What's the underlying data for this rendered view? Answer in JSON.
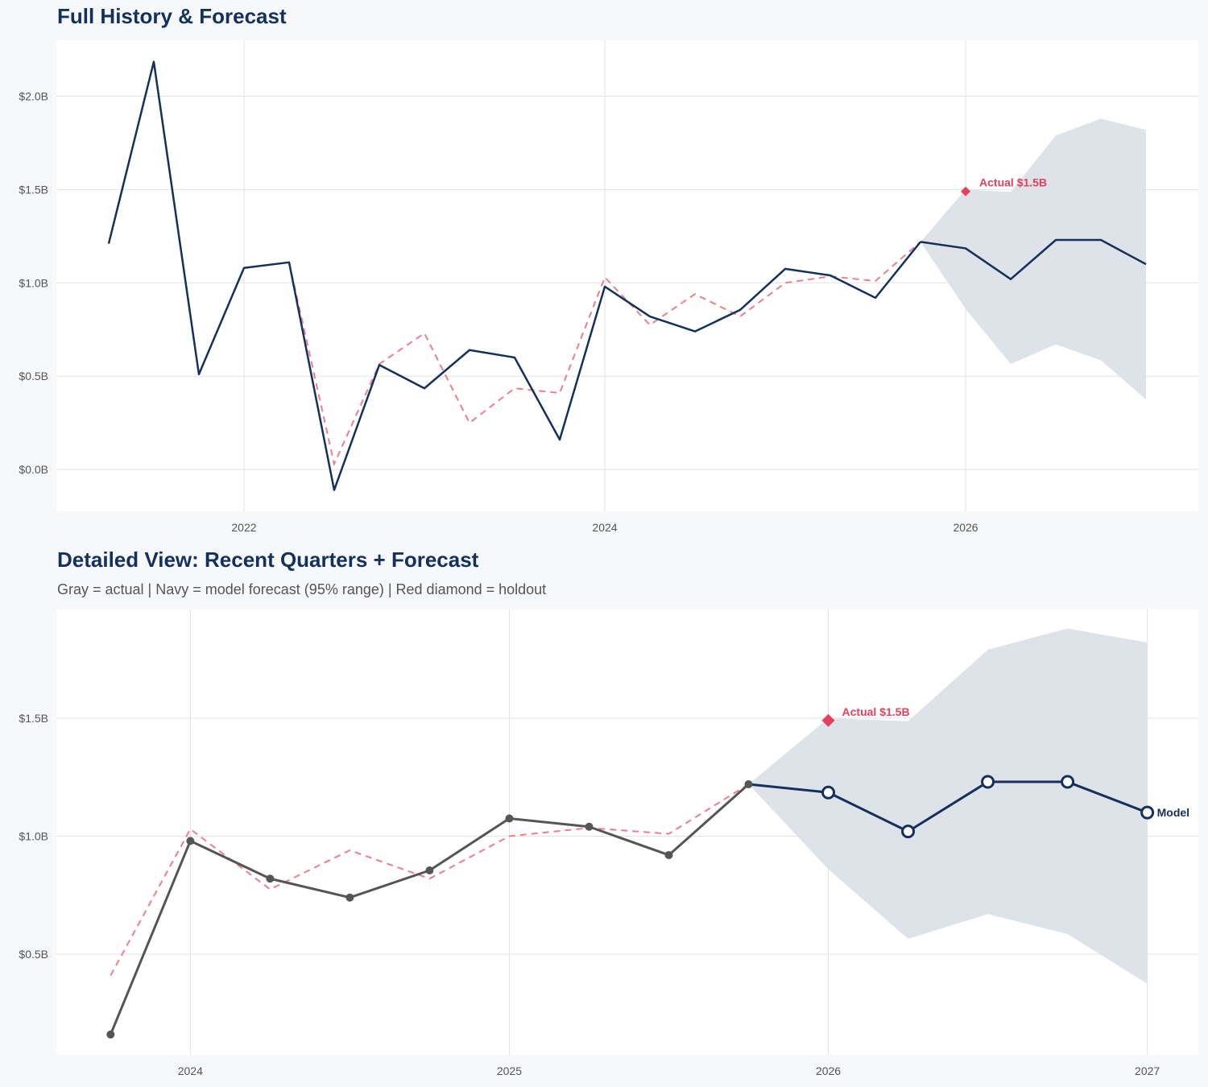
{
  "colors": {
    "navy": "#13315c",
    "red": "#e5405e",
    "fitted": "#ee7d90",
    "actual_gray": "#555555",
    "band": "#dce1e8",
    "grid": "#e3e3e3",
    "background": "#f7f8fa"
  },
  "chart_data": [
    {
      "type": "line",
      "title": "Full History & Forecast",
      "subtitle": "",
      "xlim": [
        2020.96,
        2027.29
      ],
      "ylim": [
        -0.224,
        2.3
      ],
      "grid": true,
      "x_ticks": [
        {
          "value": 2022,
          "label": "2022"
        },
        {
          "value": 2024,
          "label": "2024"
        },
        {
          "value": 2026,
          "label": "2026"
        }
      ],
      "y_ticks": [
        {
          "value": 0,
          "label": "$0.0B"
        },
        {
          "value": 0.5,
          "label": "$0.5B"
        },
        {
          "value": 1.0,
          "label": "$1.0B"
        },
        {
          "value": 1.5,
          "label": "$1.5B"
        },
        {
          "value": 2.0,
          "label": "$2.0B"
        }
      ],
      "history": {
        "x": [
          "2021-04-01",
          "2021-07-01",
          "2021-10-01",
          "2022-01-01",
          "2022-04-01",
          "2022-07-01",
          "2022-10-01",
          "2023-01-01",
          "2023-04-01",
          "2023-07-01",
          "2023-10-01",
          "2024-01-01",
          "2024-04-01",
          "2024-07-01",
          "2024-10-01",
          "2025-01-01",
          "2025-04-01",
          "2025-07-01",
          "2025-10-01"
        ],
        "y": [
          1.21,
          2.185,
          0.51,
          1.08,
          1.11,
          -0.11,
          0.56,
          0.435,
          0.64,
          0.6,
          0.16,
          0.98,
          0.82,
          0.74,
          0.855,
          1.075,
          1.04,
          0.92,
          1.22
        ],
        "style": "navy-solid",
        "markers": false
      },
      "fitted": {
        "x": [
          "2022-04-01",
          "2022-07-01",
          "2022-10-01",
          "2023-01-01",
          "2023-04-01",
          "2023-07-01",
          "2023-10-01",
          "2024-01-01",
          "2024-04-01",
          "2024-07-01",
          "2024-10-01",
          "2025-01-01",
          "2025-04-01",
          "2025-07-01",
          "2025-10-01"
        ],
        "y": [
          1.11,
          0.03,
          0.565,
          0.73,
          0.25,
          0.435,
          0.41,
          1.03,
          0.775,
          0.94,
          0.82,
          1.0,
          1.035,
          1.01,
          1.22
        ]
      },
      "forecast": {
        "x": [
          "2025-10-01",
          "2026-01-01",
          "2026-04-01",
          "2026-07-01",
          "2026-10-01",
          "2027-01-01"
        ],
        "y": [
          1.22,
          1.185,
          1.02,
          1.23,
          1.23,
          1.1
        ],
        "lower": [
          1.22,
          0.86,
          0.565,
          0.67,
          0.585,
          0.375
        ],
        "upper": [
          1.22,
          1.5,
          1.487,
          1.79,
          1.88,
          1.82
        ],
        "markers": false
      },
      "holdout": {
        "x": "2026-01-01",
        "y": 1.49,
        "label": "Actual $1.5B"
      }
    },
    {
      "type": "line",
      "title": "Detailed View: Recent Quarters + Forecast",
      "subtitle": "Gray = actual  |  Navy = model forecast (95% range)  |  Red diamond = holdout",
      "xlim": [
        2023.58,
        2027.16
      ],
      "ylim": [
        0.074,
        1.96
      ],
      "grid": true,
      "x_ticks": [
        {
          "value": 2024,
          "label": "2024"
        },
        {
          "value": 2025,
          "label": "2025"
        },
        {
          "value": 2026,
          "label": "2026"
        },
        {
          "value": 2027,
          "label": "2027"
        }
      ],
      "y_ticks": [
        {
          "value": 0.5,
          "label": "$0.5B"
        },
        {
          "value": 1.0,
          "label": "$1.0B"
        },
        {
          "value": 1.5,
          "label": "$1.5B"
        }
      ],
      "history": {
        "x": [
          "2023-10-01",
          "2024-01-01",
          "2024-04-01",
          "2024-07-01",
          "2024-10-01",
          "2025-01-01",
          "2025-04-01",
          "2025-07-01",
          "2025-10-01"
        ],
        "y": [
          0.16,
          0.98,
          0.82,
          0.74,
          0.855,
          1.075,
          1.04,
          0.92,
          1.22
        ],
        "style": "gray-solid",
        "markers": true
      },
      "fitted": {
        "x": [
          "2023-10-01",
          "2024-01-01",
          "2024-04-01",
          "2024-07-01",
          "2024-10-01",
          "2025-01-01",
          "2025-04-01",
          "2025-07-01",
          "2025-10-01"
        ],
        "y": [
          0.41,
          1.03,
          0.775,
          0.94,
          0.82,
          1.0,
          1.035,
          1.01,
          1.22
        ]
      },
      "forecast": {
        "x": [
          "2025-10-01",
          "2026-01-01",
          "2026-04-01",
          "2026-07-01",
          "2026-10-01",
          "2027-01-01"
        ],
        "y": [
          1.22,
          1.185,
          1.02,
          1.23,
          1.23,
          1.1
        ],
        "lower": [
          1.22,
          0.86,
          0.565,
          0.67,
          0.585,
          0.375
        ],
        "upper": [
          1.22,
          1.5,
          1.487,
          1.79,
          1.88,
          1.82
        ],
        "markers": true,
        "end_label": "Model"
      },
      "holdout": {
        "x": "2026-01-01",
        "y": 1.49,
        "label": "Actual $1.5B"
      }
    }
  ]
}
